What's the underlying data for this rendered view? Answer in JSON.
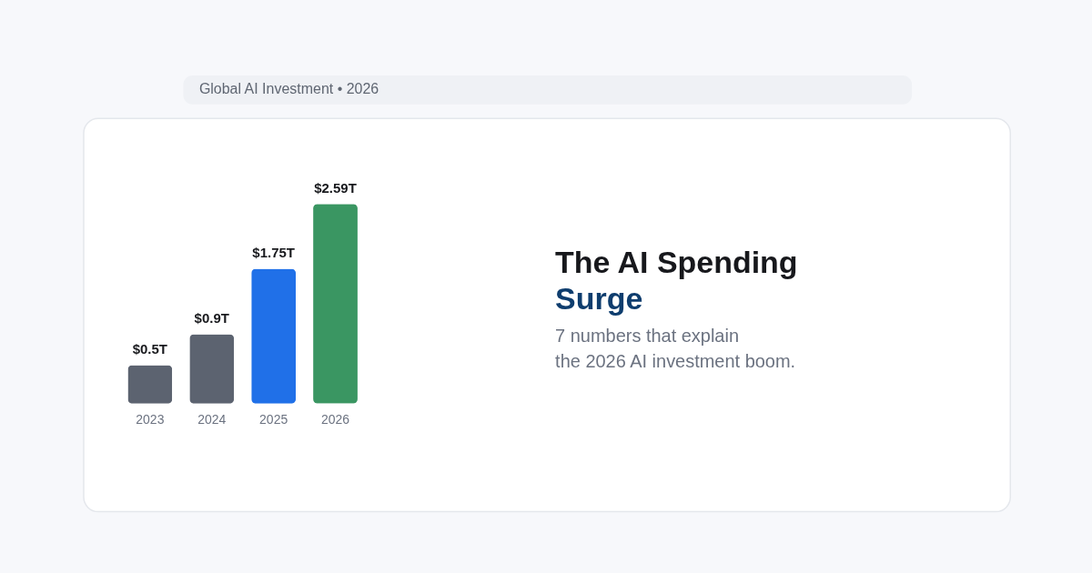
{
  "chart_data": {
    "type": "bar",
    "title": "The AI Spending Surge",
    "subtitle": "7 numbers that explain\nthe 2026 AI investment boom.",
    "annotations": [
      "Global AI Investment • 2026"
    ],
    "categories": [
      "2023",
      "2024",
      "2025",
      "2026"
    ],
    "values": [
      0.5,
      0.9,
      1.75,
      2.59
    ],
    "value_labels": [
      "$0.5T",
      "$0.9T",
      "$1.75T",
      "$2.59T"
    ],
    "colors": [
      "#5c6370",
      "#5c6370",
      "#2070e8",
      "#3a9662"
    ],
    "tick_labels": "x"
  }
}
